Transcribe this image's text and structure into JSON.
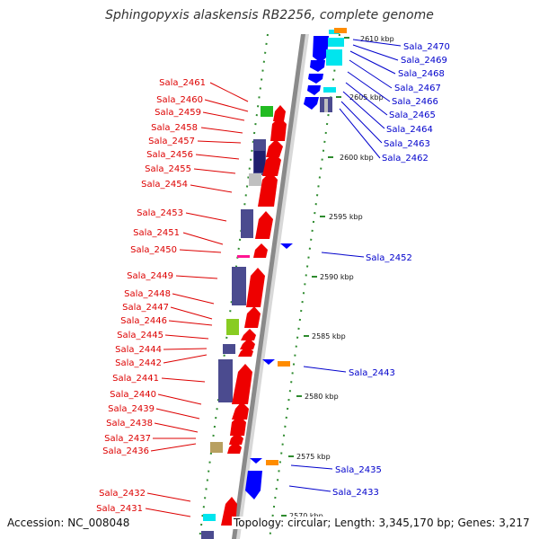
{
  "title": "Sphingopyxis alaskensis RB2256, complete genome",
  "footer": {
    "accession": "Accession: NC_008048",
    "topology": "Topology: circular; Length: 3,345,170 bp; Genes: 3,217"
  },
  "colors": {
    "backbone": "#909090",
    "tick": "#2e8b2e",
    "left_label": "#dd0000",
    "right_label": "#0000cc",
    "forward_gene": "#ee0000",
    "reverse_gene": "#0000ff",
    "cds_block": "#4b4b8f",
    "orange_block": "#ff8c00",
    "green_block": "#22bb22",
    "cyan_block": "#00e5ee",
    "olive_block": "#b8a060",
    "lime_block": "#88cc22",
    "pink_block": "#ff1493"
  },
  "kbp_ticks": [
    "2570 kbp",
    "2575 kbp",
    "2580 kbp",
    "2585 kbp",
    "2590 kbp",
    "2595 kbp",
    "2600 kbp",
    "2605 kbp",
    "2610 kbp"
  ],
  "left_genes": [
    "Sala_2461",
    "Sala_2460",
    "Sala_2459",
    "Sala_2458",
    "Sala_2457",
    "Sala_2456",
    "Sala_2455",
    "Sala_2454",
    "Sala_2453",
    "Sala_2451",
    "Sala_2450",
    "Sala_2449",
    "Sala_2448",
    "Sala_2447",
    "Sala_2446",
    "Sala_2445",
    "Sala_2444",
    "Sala_2442",
    "Sala_2441",
    "Sala_2440",
    "Sala_2439",
    "Sala_2438",
    "Sala_2437",
    "Sala_2436",
    "Sala_2432",
    "Sala_2431"
  ],
  "right_genes": [
    "Sala_2470",
    "Sala_2469",
    "Sala_2468",
    "Sala_2467",
    "Sala_2466",
    "Sala_2465",
    "Sala_2464",
    "Sala_2463",
    "Sala_2462",
    "Sala_2452",
    "Sala_2443",
    "Sala_2435",
    "Sala_2433"
  ]
}
